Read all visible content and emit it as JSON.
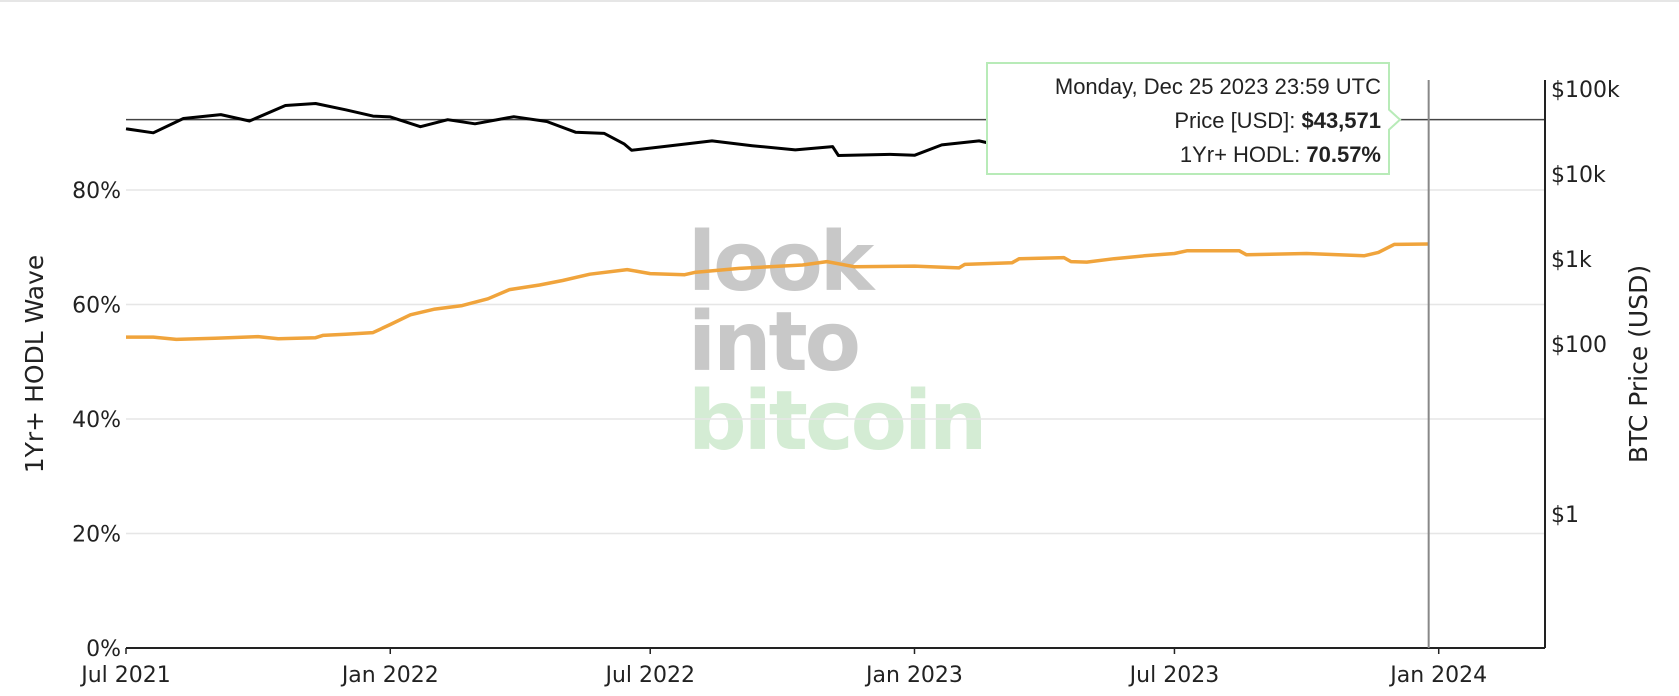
{
  "chart_data": {
    "type": "line",
    "watermark": [
      "look",
      "into",
      "bitcoin"
    ],
    "x_axis": {
      "type": "date",
      "range": [
        "2021-07-01",
        "2024-03-15"
      ],
      "ticks": [
        {
          "date": "2021-07-01",
          "label": "Jul 2021"
        },
        {
          "date": "2022-01-01",
          "label": "Jan 2022"
        },
        {
          "date": "2022-07-01",
          "label": "Jul 2022"
        },
        {
          "date": "2023-01-01",
          "label": "Jan 2023"
        },
        {
          "date": "2023-07-01",
          "label": "Jul 2023"
        },
        {
          "date": "2024-01-01",
          "label": "Jan 2024"
        }
      ]
    },
    "y_left": {
      "title": "1Yr+ HODL Wave",
      "range": [
        0,
        80
      ],
      "ticks": [
        {
          "value": 0,
          "label": "0%"
        },
        {
          "value": 20,
          "label": "20%"
        },
        {
          "value": 40,
          "label": "40%"
        },
        {
          "value": 60,
          "label": "60%"
        },
        {
          "value": 80,
          "label": "80%"
        }
      ],
      "grid": true
    },
    "y_right": {
      "title": "BTC Price (USD)",
      "scale": "log",
      "ticks": [
        {
          "value": 1,
          "label": "$1"
        },
        {
          "value": 100,
          "label": "$100"
        },
        {
          "value": 1000,
          "label": "$1k"
        },
        {
          "value": 10000,
          "label": "$10k"
        },
        {
          "value": 100000,
          "label": "$100k"
        }
      ]
    },
    "series": [
      {
        "key": "hodl",
        "axis": "left",
        "color": "#f0a43c",
        "points": [
          [
            "2021-07-01",
            54.3
          ],
          [
            "2021-07-20",
            54.3
          ],
          [
            "2021-08-05",
            53.9
          ],
          [
            "2021-09-01",
            54.1
          ],
          [
            "2021-10-01",
            54.4
          ],
          [
            "2021-10-15",
            54.0
          ],
          [
            "2021-11-10",
            54.2
          ],
          [
            "2021-11-15",
            54.6
          ],
          [
            "2021-12-01",
            54.8
          ],
          [
            "2021-12-20",
            55.1
          ],
          [
            "2022-01-01",
            56.5
          ],
          [
            "2022-01-15",
            58.2
          ],
          [
            "2022-02-01",
            59.2
          ],
          [
            "2022-02-20",
            59.8
          ],
          [
            "2022-03-10",
            61.0
          ],
          [
            "2022-03-25",
            62.6
          ],
          [
            "2022-04-15",
            63.4
          ],
          [
            "2022-05-01",
            64.2
          ],
          [
            "2022-05-20",
            65.3
          ],
          [
            "2022-06-15",
            66.1
          ],
          [
            "2022-07-01",
            65.4
          ],
          [
            "2022-07-25",
            65.2
          ],
          [
            "2022-08-01",
            65.6
          ],
          [
            "2022-09-01",
            66.3
          ],
          [
            "2022-10-15",
            66.9
          ],
          [
            "2022-11-01",
            67.5
          ],
          [
            "2022-11-20",
            66.6
          ],
          [
            "2023-01-01",
            66.7
          ],
          [
            "2023-02-01",
            66.4
          ],
          [
            "2023-02-05",
            67.0
          ],
          [
            "2023-03-10",
            67.3
          ],
          [
            "2023-03-15",
            68.0
          ],
          [
            "2023-04-15",
            68.2
          ],
          [
            "2023-04-20",
            67.5
          ],
          [
            "2023-05-01",
            67.4
          ],
          [
            "2023-05-20",
            68.0
          ],
          [
            "2023-06-10",
            68.5
          ],
          [
            "2023-07-01",
            68.9
          ],
          [
            "2023-07-10",
            69.4
          ],
          [
            "2023-08-15",
            69.4
          ],
          [
            "2023-08-20",
            68.7
          ],
          [
            "2023-10-01",
            68.9
          ],
          [
            "2023-11-10",
            68.5
          ],
          [
            "2023-11-20",
            69.1
          ],
          [
            "2023-12-01",
            70.5
          ],
          [
            "2023-12-25",
            70.57
          ]
        ]
      },
      {
        "key": "price",
        "axis": "right",
        "color": "#000000",
        "points": [
          [
            "2021-07-01",
            34000
          ],
          [
            "2021-07-20",
            30500
          ],
          [
            "2021-08-10",
            45000
          ],
          [
            "2021-09-05",
            50000
          ],
          [
            "2021-09-25",
            42000
          ],
          [
            "2021-10-20",
            64000
          ],
          [
            "2021-11-10",
            67500
          ],
          [
            "2021-12-01",
            57000
          ],
          [
            "2021-12-20",
            48000
          ],
          [
            "2022-01-01",
            47000
          ],
          [
            "2022-01-22",
            36000
          ],
          [
            "2022-02-10",
            43500
          ],
          [
            "2022-03-01",
            39000
          ],
          [
            "2022-03-28",
            47200
          ],
          [
            "2022-04-20",
            41500
          ],
          [
            "2022-05-10",
            31000
          ],
          [
            "2022-05-30",
            30000
          ],
          [
            "2022-06-13",
            22500
          ],
          [
            "2022-06-18",
            19000
          ],
          [
            "2022-07-10",
            21000
          ],
          [
            "2022-08-13",
            24500
          ],
          [
            "2022-09-10",
            21500
          ],
          [
            "2022-10-10",
            19200
          ],
          [
            "2022-11-05",
            21000
          ],
          [
            "2022-11-09",
            16500
          ],
          [
            "2022-12-15",
            17000
          ],
          [
            "2023-01-01",
            16600
          ],
          [
            "2023-01-20",
            22000
          ],
          [
            "2023-02-15",
            24500
          ],
          [
            "2023-03-10",
            20000
          ]
        ]
      }
    ],
    "reference_line": {
      "value": 43571,
      "axis": "right"
    },
    "hover": {
      "date": "2023-12-25",
      "title": "Monday, Dec 25 2023 23:59 UTC",
      "price_label": "Price [USD]: ",
      "price_value": "$43,571",
      "hodl_label": "1Yr+ HODL: ",
      "hodl_value": "70.57%"
    }
  }
}
